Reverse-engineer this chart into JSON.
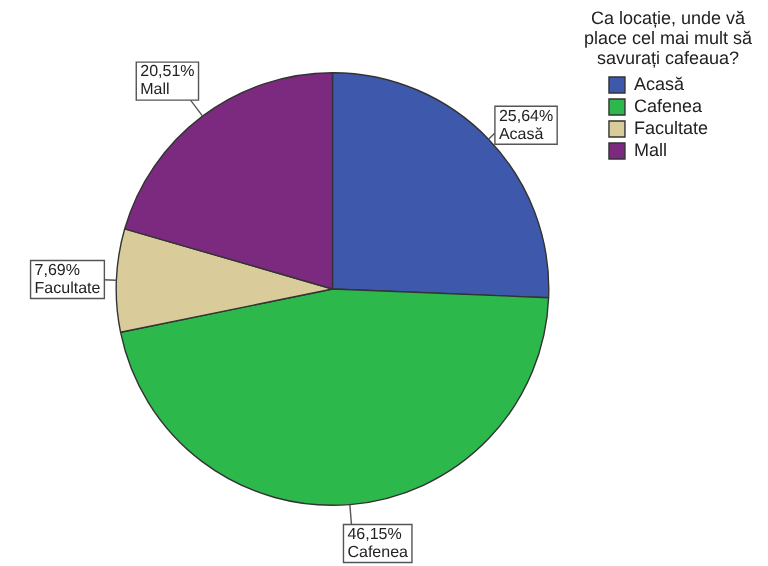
{
  "chart_data": {
    "type": "pie",
    "legend_title": "Ca locație, unde vă place cel mai mult să savurați cafeaua?",
    "categories": [
      "Acasă",
      "Cafenea",
      "Facultate",
      "Mall"
    ],
    "values": [
      25.64,
      46.15,
      7.69,
      20.51
    ],
    "colors": [
      "#3e58ac",
      "#2db84b",
      "#d9cc9a",
      "#7c2a80"
    ],
    "value_labels": [
      "25,64%",
      "46,15%",
      "7,69%",
      "20,51%"
    ],
    "legend": "right"
  }
}
